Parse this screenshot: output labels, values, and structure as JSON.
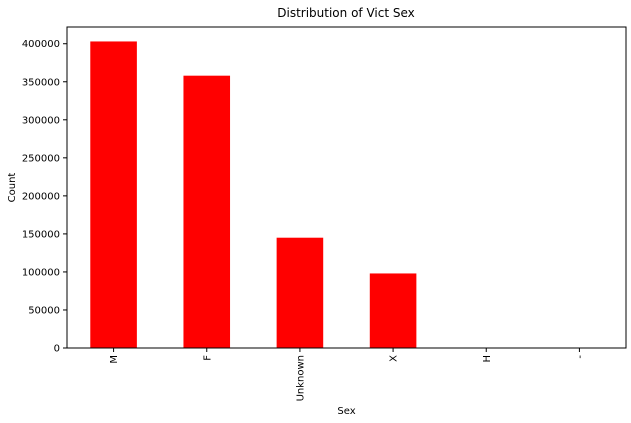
{
  "chart_data": {
    "type": "bar",
    "title": "Distribution of Vict Sex",
    "xlabel": "Sex",
    "ylabel": "Count",
    "categories": [
      "M",
      "F",
      "Unknown",
      "X",
      "H",
      "-"
    ],
    "values": [
      403000,
      358000,
      145000,
      98000,
      100,
      1
    ],
    "ylim": [
      0,
      422000
    ],
    "yticks": [
      0,
      50000,
      100000,
      150000,
      200000,
      250000,
      300000,
      350000,
      400000
    ],
    "ytick_labels": [
      "0",
      "50000",
      "100000",
      "150000",
      "200000",
      "250000",
      "300000",
      "350000",
      "400000"
    ],
    "bar_color": "#ff0000",
    "grid": false,
    "legend": "none"
  }
}
